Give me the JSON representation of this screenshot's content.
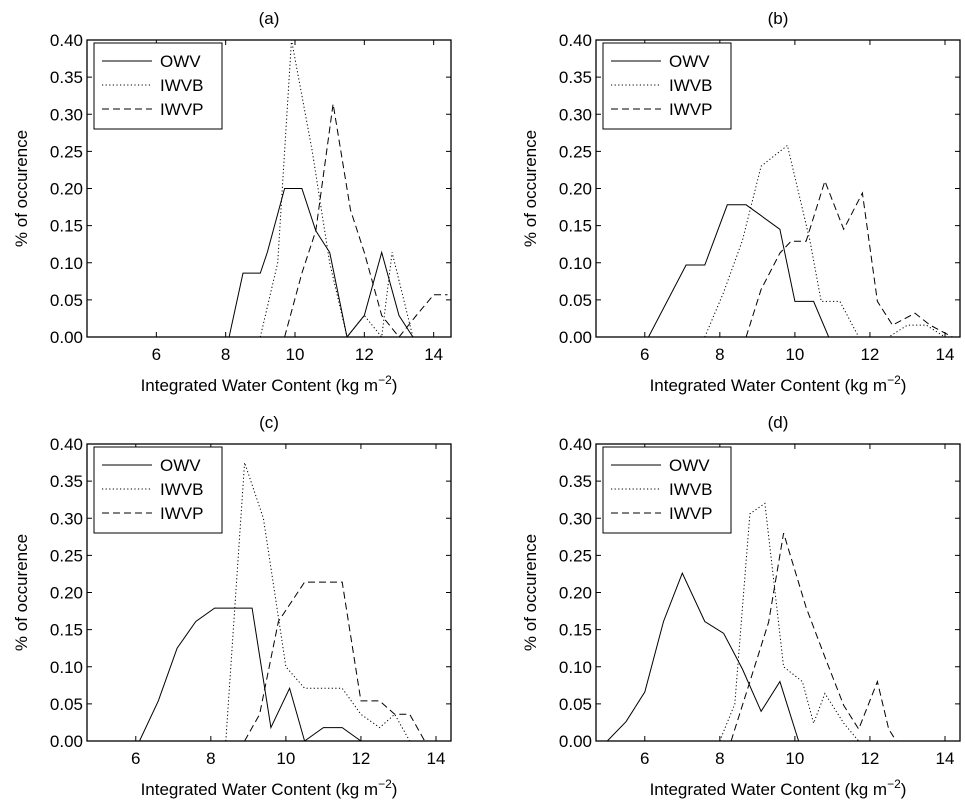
{
  "figure": {
    "ylabel": "% of occurence",
    "xlabel_main": "Integrated Water Content (kg m",
    "xlabel_sup": "−2",
    "xlabel_close": ")"
  },
  "series_styles": {
    "OWV": "solid",
    "IWVB": "dotted",
    "IWVP": "dashed"
  },
  "chart_data": [
    {
      "type": "line",
      "title": "(a)",
      "xlim": [
        4,
        14.5
      ],
      "ylim": [
        0,
        0.4
      ],
      "xticks": [
        6,
        8,
        10,
        12,
        14
      ],
      "yticks": [
        0,
        0.05,
        0.1,
        0.15,
        0.2,
        0.25,
        0.3,
        0.35,
        0.4
      ],
      "ytick_labels": [
        "0.00",
        "0.05",
        "0.10",
        "0.15",
        "0.20",
        "0.25",
        "0.30",
        "0.35",
        "0.40"
      ],
      "legend": {
        "placement": "top-left",
        "entries": [
          "OWV",
          "IWVB",
          "IWVP"
        ]
      },
      "series": [
        {
          "name": "OWV",
          "points": [
            [
              8.1,
              0
            ],
            [
              8.5,
              0.086
            ],
            [
              9.0,
              0.086
            ],
            [
              9.2,
              0.114
            ],
            [
              9.7,
              0.2
            ],
            [
              10.2,
              0.2
            ],
            [
              10.6,
              0.143
            ],
            [
              11.0,
              0.114
            ],
            [
              11.5,
              0.0
            ],
            [
              12.0,
              0.029
            ],
            [
              12.5,
              0.114
            ],
            [
              13.0,
              0.029
            ],
            [
              13.4,
              0
            ]
          ]
        },
        {
          "name": "IWVB",
          "points": [
            [
              9.0,
              0
            ],
            [
              9.5,
              0.1
            ],
            [
              9.9,
              0.4
            ],
            [
              10.5,
              0.25
            ],
            [
              11.0,
              0.1
            ],
            [
              11.5,
              0.0
            ],
            [
              12.0,
              0.029
            ],
            [
              12.5,
              0.0
            ],
            [
              12.8,
              0.114
            ],
            [
              13.4,
              0.0
            ],
            [
              13.8,
              0.0
            ]
          ]
        },
        {
          "name": "IWVP",
          "points": [
            [
              9.7,
              0
            ],
            [
              10.2,
              0.086
            ],
            [
              10.6,
              0.143
            ],
            [
              11.1,
              0.314
            ],
            [
              11.6,
              0.171
            ],
            [
              12.0,
              0.114
            ],
            [
              12.5,
              0.029
            ],
            [
              13.0,
              0.0
            ],
            [
              13.5,
              0.029
            ],
            [
              14.0,
              0.057
            ],
            [
              14.4,
              0.057
            ]
          ]
        }
      ]
    },
    {
      "type": "line",
      "title": "(b)",
      "xlim": [
        4.7,
        14.4
      ],
      "ylim": [
        0,
        0.4
      ],
      "xticks": [
        6,
        8,
        10,
        12,
        14
      ],
      "yticks": [
        0,
        0.05,
        0.1,
        0.15,
        0.2,
        0.25,
        0.3,
        0.35,
        0.4
      ],
      "ytick_labels": [
        "0.00",
        "0.05",
        "0.10",
        "0.15",
        "0.20",
        "0.25",
        "0.30",
        "0.35",
        "0.40"
      ],
      "legend": {
        "placement": "top-left",
        "entries": [
          "OWV",
          "IWVB",
          "IWVP"
        ]
      },
      "series": [
        {
          "name": "OWV",
          "points": [
            [
              6.1,
              0
            ],
            [
              7.1,
              0.097
            ],
            [
              7.6,
              0.097
            ],
            [
              8.2,
              0.178
            ],
            [
              8.7,
              0.178
            ],
            [
              9.6,
              0.145
            ],
            [
              10.0,
              0.048
            ],
            [
              10.5,
              0.048
            ],
            [
              10.9,
              0
            ]
          ]
        },
        {
          "name": "IWVB",
          "points": [
            [
              7.6,
              0
            ],
            [
              8.1,
              0.06
            ],
            [
              8.6,
              0.13
            ],
            [
              9.1,
              0.23
            ],
            [
              9.8,
              0.258
            ],
            [
              10.4,
              0.13
            ],
            [
              10.7,
              0.048
            ],
            [
              11.2,
              0.048
            ],
            [
              11.7,
              0.0
            ],
            [
              12.5,
              0.0
            ],
            [
              13.0,
              0.016
            ],
            [
              13.5,
              0.016
            ],
            [
              14.0,
              0
            ]
          ]
        },
        {
          "name": "IWVP",
          "points": [
            [
              8.7,
              0
            ],
            [
              9.1,
              0.064
            ],
            [
              9.6,
              0.113
            ],
            [
              9.9,
              0.129
            ],
            [
              10.3,
              0.129
            ],
            [
              10.8,
              0.21
            ],
            [
              11.3,
              0.145
            ],
            [
              11.8,
              0.194
            ],
            [
              12.2,
              0.048
            ],
            [
              12.6,
              0.016
            ],
            [
              13.2,
              0.032
            ],
            [
              13.6,
              0.016
            ],
            [
              14.2,
              0
            ]
          ]
        }
      ]
    },
    {
      "type": "line",
      "title": "(c)",
      "xlim": [
        4.7,
        14.4
      ],
      "ylim": [
        0,
        0.4
      ],
      "xticks": [
        6,
        8,
        10,
        12,
        14
      ],
      "yticks": [
        0,
        0.05,
        0.1,
        0.15,
        0.2,
        0.25,
        0.3,
        0.35,
        0.4
      ],
      "ytick_labels": [
        "0.00",
        "0.05",
        "0.10",
        "0.15",
        "0.20",
        "0.25",
        "0.30",
        "0.35",
        "0.40"
      ],
      "legend": {
        "placement": "top-left",
        "entries": [
          "OWV",
          "IWVB",
          "IWVP"
        ]
      },
      "series": [
        {
          "name": "OWV",
          "points": [
            [
              6.1,
              0
            ],
            [
              6.6,
              0.054
            ],
            [
              7.1,
              0.125
            ],
            [
              7.6,
              0.161
            ],
            [
              8.1,
              0.179
            ],
            [
              9.1,
              0.179
            ],
            [
              9.6,
              0.018
            ],
            [
              10.1,
              0.071
            ],
            [
              10.5,
              0.0
            ],
            [
              11.0,
              0.018
            ],
            [
              11.5,
              0.018
            ],
            [
              12.0,
              0
            ]
          ]
        },
        {
          "name": "IWVB",
          "points": [
            [
              8.4,
              0
            ],
            [
              8.9,
              0.375
            ],
            [
              9.4,
              0.3
            ],
            [
              10.0,
              0.1
            ],
            [
              10.5,
              0.071
            ],
            [
              11.5,
              0.071
            ],
            [
              12.0,
              0.036
            ],
            [
              12.5,
              0.018
            ],
            [
              12.9,
              0.036
            ],
            [
              13.3,
              0
            ]
          ]
        },
        {
          "name": "IWVP",
          "points": [
            [
              8.9,
              0
            ],
            [
              9.3,
              0.036
            ],
            [
              9.8,
              0.161
            ],
            [
              10.5,
              0.214
            ],
            [
              11.5,
              0.214
            ],
            [
              12.0,
              0.054
            ],
            [
              12.5,
              0.054
            ],
            [
              12.9,
              0.036
            ],
            [
              13.3,
              0.036
            ],
            [
              13.7,
              0
            ]
          ]
        }
      ]
    },
    {
      "type": "line",
      "title": "(d)",
      "xlim": [
        4.7,
        14.4
      ],
      "ylim": [
        0,
        0.4
      ],
      "xticks": [
        6,
        8,
        10,
        12,
        14
      ],
      "yticks": [
        0,
        0.05,
        0.1,
        0.15,
        0.2,
        0.25,
        0.3,
        0.35,
        0.4
      ],
      "ytick_labels": [
        "0.00",
        "0.05",
        "0.10",
        "0.15",
        "0.20",
        "0.25",
        "0.30",
        "0.35",
        "0.40"
      ],
      "legend": {
        "placement": "top-left",
        "entries": [
          "OWV",
          "IWVB",
          "IWVP"
        ]
      },
      "series": [
        {
          "name": "OWV",
          "points": [
            [
              5.0,
              0
            ],
            [
              5.5,
              0.026
            ],
            [
              6.0,
              0.066
            ],
            [
              6.5,
              0.161
            ],
            [
              7.0,
              0.226
            ],
            [
              7.6,
              0.161
            ],
            [
              8.1,
              0.145
            ],
            [
              8.6,
              0.097
            ],
            [
              9.1,
              0.04
            ],
            [
              9.6,
              0.08
            ],
            [
              10.1,
              0
            ]
          ]
        },
        {
          "name": "IWVB",
          "points": [
            [
              8.0,
              0
            ],
            [
              8.4,
              0.05
            ],
            [
              8.8,
              0.306
            ],
            [
              9.2,
              0.32
            ],
            [
              9.7,
              0.1
            ],
            [
              10.2,
              0.08
            ],
            [
              10.5,
              0.024
            ],
            [
              10.8,
              0.064
            ],
            [
              11.3,
              0.024
            ],
            [
              11.7,
              0
            ]
          ]
        },
        {
          "name": "IWVP",
          "points": [
            [
              8.3,
              0
            ],
            [
              8.8,
              0.08
            ],
            [
              9.3,
              0.16
            ],
            [
              9.7,
              0.28
            ],
            [
              10.3,
              0.18
            ],
            [
              10.8,
              0.113
            ],
            [
              11.3,
              0.048
            ],
            [
              11.7,
              0.016
            ],
            [
              12.2,
              0.08
            ],
            [
              12.5,
              0.016
            ],
            [
              12.7,
              0
            ]
          ]
        }
      ]
    }
  ]
}
